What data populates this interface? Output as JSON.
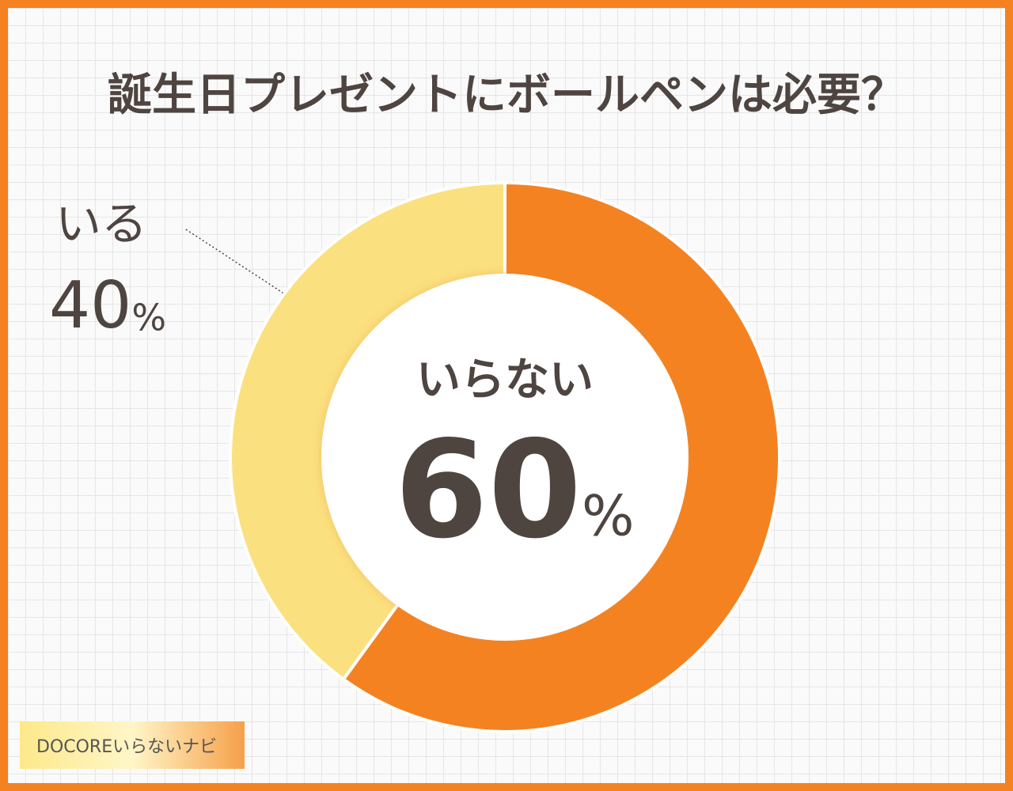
{
  "chart_data": {
    "type": "donut",
    "title": "誕生日プレゼントにボールペンは必要？",
    "categories": [
      "いらない",
      "いる"
    ],
    "values": [
      60,
      40
    ],
    "value_labels": [
      "60%",
      "40%"
    ],
    "colors": [
      "#f58220",
      "#fbe07f"
    ],
    "brand": "DOCOREいらないナビ"
  }
}
